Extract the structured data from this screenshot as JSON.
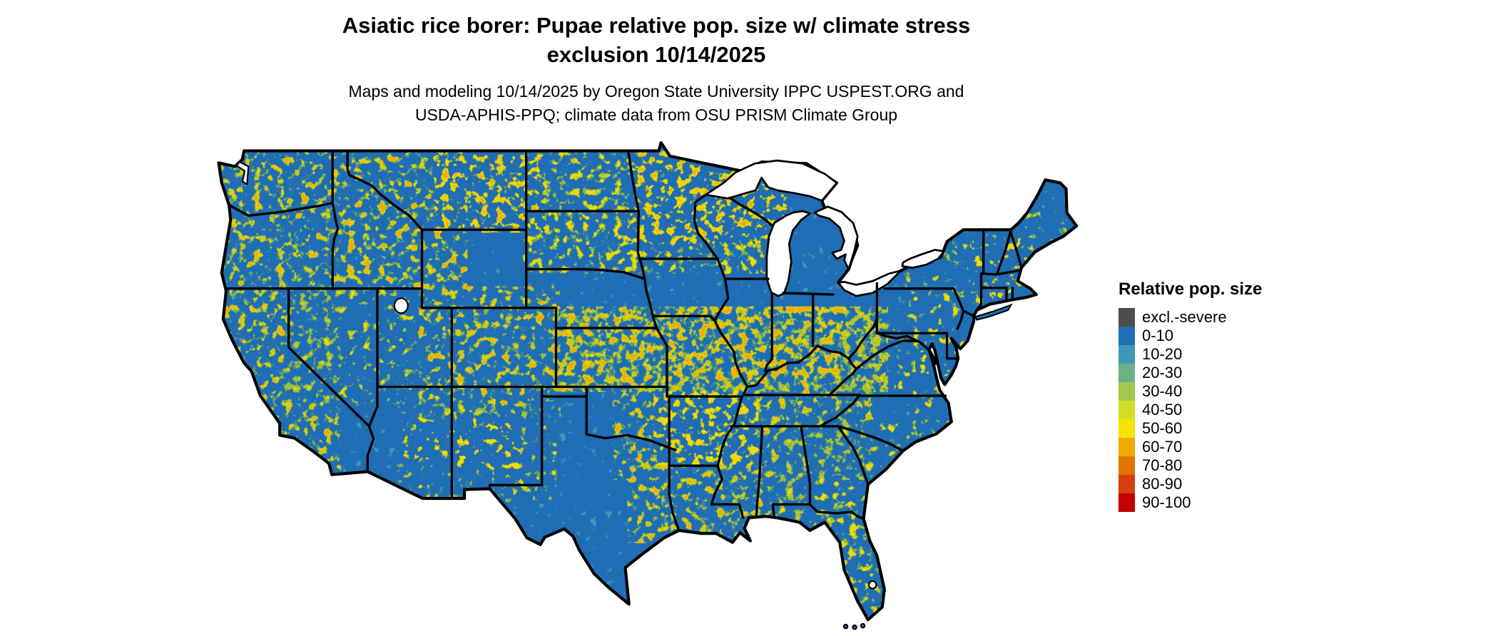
{
  "title": {
    "line1": "Asiatic rice borer: Pupae relative pop. size w/ climate stress",
    "line2": "exclusion 10/14/2025"
  },
  "subtitle": {
    "line1": "Maps and modeling 10/14/2025 by Oregon State University IPPC USPEST.ORG and",
    "line2": "USDA-APHIS-PPQ; climate data from OSU PRISM Climate Group"
  },
  "legend": {
    "title": "Relative pop. size",
    "items": [
      {
        "label": "excl.-severe",
        "color": "#4d4d4d"
      },
      {
        "label": "0-10",
        "color": "#1f6db4"
      },
      {
        "label": "10-20",
        "color": "#3f98b8"
      },
      {
        "label": "20-30",
        "color": "#6ab183"
      },
      {
        "label": "30-40",
        "color": "#a3c84d"
      },
      {
        "label": "40-50",
        "color": "#d5dc26"
      },
      {
        "label": "50-60",
        "color": "#f5e300"
      },
      {
        "label": "60-70",
        "color": "#f0ab00"
      },
      {
        "label": "70-80",
        "color": "#e57300"
      },
      {
        "label": "80-90",
        "color": "#d63f0a"
      },
      {
        "label": "90-100",
        "color": "#c40000"
      }
    ]
  },
  "map": {
    "palette": {
      "blue": "#1f6db4",
      "teal": "#3f98b8",
      "green": "#8abb4a",
      "yellow": "#f2da00",
      "gold": "#eeab00",
      "lake": "#ffffff",
      "line": "#000000"
    }
  }
}
